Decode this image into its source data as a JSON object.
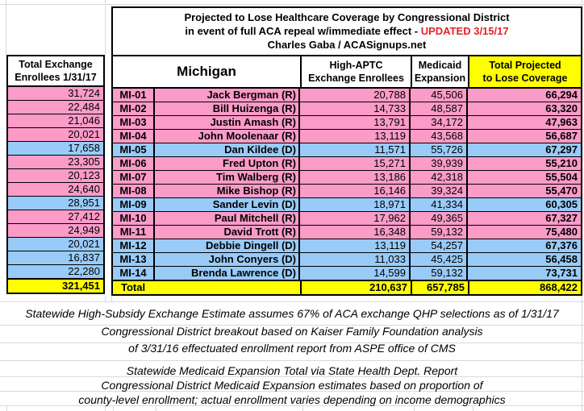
{
  "title": {
    "line1": "Projected to Lose Healthcare Coverage by Congressional District",
    "line2_prefix": "in event of full ACA repeal w/immediate effect - ",
    "line2_updated": "UPDATED 3/15/17",
    "line3": "Charles Gaba / ACASignups.net"
  },
  "left_column": {
    "header_line1": "Total Exchange",
    "header_line2": "Enrollees 1/31/17",
    "total": "321,451"
  },
  "table": {
    "state_header": "Michigan",
    "col_aptc_line1": "High-APTC",
    "col_aptc_line2": "Exchange Enrollees",
    "col_medicaid_line1": "Medicaid",
    "col_medicaid_line2": "Expansion",
    "col_total_line1": "Total Projected",
    "col_total_line2": "to Lose Coverage",
    "rows": [
      {
        "district": "MI-01",
        "rep": "Jack Bergman (R)",
        "party": "R",
        "exchange_enrollees": "31,724",
        "high_aptc": "20,788",
        "medicaid": "45,506",
        "total_loss": "66,294"
      },
      {
        "district": "MI-02",
        "rep": "Bill Huizenga (R)",
        "party": "R",
        "exchange_enrollees": "22,484",
        "high_aptc": "14,733",
        "medicaid": "48,587",
        "total_loss": "63,320"
      },
      {
        "district": "MI-03",
        "rep": "Justin Amash (R)",
        "party": "R",
        "exchange_enrollees": "21,046",
        "high_aptc": "13,791",
        "medicaid": "34,172",
        "total_loss": "47,963"
      },
      {
        "district": "MI-04",
        "rep": "John Moolenaar (R)",
        "party": "R",
        "exchange_enrollees": "20,021",
        "high_aptc": "13,119",
        "medicaid": "43,568",
        "total_loss": "56,687"
      },
      {
        "district": "MI-05",
        "rep": "Dan Kildee (D)",
        "party": "D",
        "exchange_enrollees": "17,658",
        "high_aptc": "11,571",
        "medicaid": "55,726",
        "total_loss": "67,297"
      },
      {
        "district": "MI-06",
        "rep": "Fred Upton (R)",
        "party": "R",
        "exchange_enrollees": "23,305",
        "high_aptc": "15,271",
        "medicaid": "39,939",
        "total_loss": "55,210"
      },
      {
        "district": "MI-07",
        "rep": "Tim Walberg (R)",
        "party": "R",
        "exchange_enrollees": "20,123",
        "high_aptc": "13,186",
        "medicaid": "42,318",
        "total_loss": "55,504"
      },
      {
        "district": "MI-08",
        "rep": "Mike Bishop (R)",
        "party": "R",
        "exchange_enrollees": "24,640",
        "high_aptc": "16,146",
        "medicaid": "39,324",
        "total_loss": "55,470"
      },
      {
        "district": "MI-09",
        "rep": "Sander Levin (D)",
        "party": "D",
        "exchange_enrollees": "28,951",
        "high_aptc": "18,971",
        "medicaid": "41,334",
        "total_loss": "60,305"
      },
      {
        "district": "MI-10",
        "rep": "Paul Mitchell (R)",
        "party": "R",
        "exchange_enrollees": "27,412",
        "high_aptc": "17,962",
        "medicaid": "49,365",
        "total_loss": "67,327"
      },
      {
        "district": "MI-11",
        "rep": "David Trott (R)",
        "party": "R",
        "exchange_enrollees": "24,949",
        "high_aptc": "16,348",
        "medicaid": "59,132",
        "total_loss": "75,480"
      },
      {
        "district": "MI-12",
        "rep": "Debbie Dingell (D)",
        "party": "D",
        "exchange_enrollees": "20,021",
        "high_aptc": "13,119",
        "medicaid": "54,257",
        "total_loss": "67,376"
      },
      {
        "district": "MI-13",
        "rep": "John Conyers (D)",
        "party": "D",
        "exchange_enrollees": "16,837",
        "high_aptc": "11,033",
        "medicaid": "45,425",
        "total_loss": "56,458"
      },
      {
        "district": "MI-14",
        "rep": "Brenda Lawrence (D)",
        "party": "D",
        "exchange_enrollees": "22,280",
        "high_aptc": "14,599",
        "medicaid": "59,132",
        "total_loss": "73,731"
      }
    ],
    "total_row": {
      "label": "Total",
      "exchange_enrollees": "321,451",
      "high_aptc": "210,637",
      "medicaid": "657,785",
      "total_loss": "868,422"
    }
  },
  "footnotes": [
    "Statewide High-Subsidy Exchange Estimate assumes 67% of ACA exchange QHP selections as of 1/31/17",
    "Congressional District breakout based on Kaiser Family Foundation analysis",
    "of 3/31/16 effectuated enrollment report from ASPE office of CMS",
    "Statewide Medicaid Expansion Total via State Health Dept. Report",
    "Congressional District Medicaid Expansion estimates based on proportion of",
    "county-level enrollment; actual enrollment varies depending on income demographics"
  ],
  "colors": {
    "republican_row": "#fb9bc8",
    "democrat_row": "#99cbf8",
    "total_row_yellow": "#ffff00",
    "updated_text_red": "#e32227",
    "gridline_gray": "#d9d9d9"
  }
}
